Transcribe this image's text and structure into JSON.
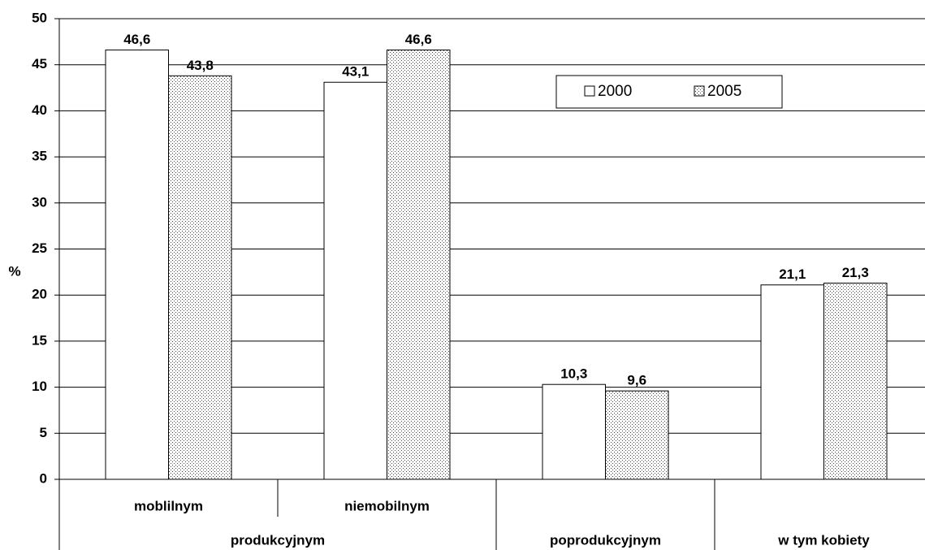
{
  "chart_data": {
    "type": "bar",
    "y_label": "%",
    "categories": [
      "moblilnym",
      "niemobilnym",
      null,
      null
    ],
    "category_groups": [
      {
        "label": "produkcyjnym",
        "size": 2
      },
      {
        "label": "poprodukcyjnym",
        "size": 1
      },
      {
        "label": "w tym kobiety",
        "size": 1
      }
    ],
    "series": [
      {
        "name": "2000",
        "color": "#ffffff",
        "values": [
          46.6,
          43.1,
          10.3,
          21.1
        ],
        "value_labels": [
          "46,6",
          "43,1",
          "10,3",
          "21,1"
        ]
      },
      {
        "name": "2005",
        "color": "#ffffff",
        "pattern": "dots",
        "values": [
          43.8,
          46.6,
          9.6,
          21.3
        ],
        "value_labels": [
          "43,8",
          "46,6",
          "9,6",
          "21,3"
        ]
      }
    ],
    "ylim": [
      0,
      50
    ],
    "yticks": [
      0,
      5,
      10,
      15,
      20,
      25,
      30,
      35,
      40,
      45,
      50
    ],
    "grid": true
  }
}
